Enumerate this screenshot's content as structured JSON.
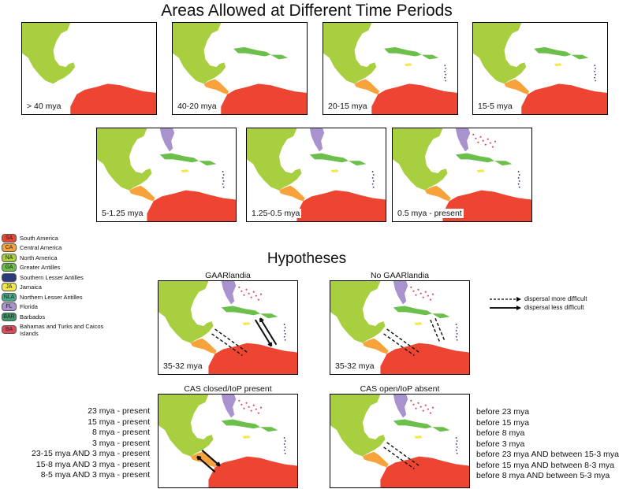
{
  "title": "Areas Allowed at Different Time Periods",
  "hypotheses_title": "Hypotheses",
  "colors": {
    "south_america": "#ee4532",
    "central_america": "#f7a23b",
    "north_america": "#a7cf3f",
    "greater_antilles": "#6cbf4b",
    "southern_lesser_antilles": "#2c3a7a",
    "jamaica": "#f3e84a",
    "northern_lesser_antilles": "#47a88a",
    "florida": "#a993cf",
    "barbados": "#3a9b6a",
    "bahamas": "#e04a5a"
  },
  "time_panels": [
    {
      "label": "> 40 mya"
    },
    {
      "label": "40-20 mya"
    },
    {
      "label": "20-15 mya"
    },
    {
      "label": "15-5 mya"
    },
    {
      "label": "5-1.25 mya"
    },
    {
      "label": "1.25-0.5 mya"
    },
    {
      "label": "0.5 mya - present"
    }
  ],
  "legend": [
    {
      "code": "SA",
      "name": "South America",
      "color": "#ee4532"
    },
    {
      "code": "CA",
      "name": "Central America",
      "color": "#f7a23b"
    },
    {
      "code": "NA",
      "name": "North America",
      "color": "#a7cf3f"
    },
    {
      "code": "GA",
      "name": "Greater Antilles",
      "color": "#6cbf4b"
    },
    {
      "code": "",
      "name": "Southern Lesser Antilles",
      "color": "#2c3a7a"
    },
    {
      "code": "JA",
      "name": "Jamaica",
      "color": "#f3e84a"
    },
    {
      "code": "NLA",
      "name": "Northern Lesser Antilles",
      "color": "#47a88a"
    },
    {
      "code": "FL",
      "name": "Florida",
      "color": "#a993cf"
    },
    {
      "code": "BAR",
      "name": "Barbados",
      "color": "#3a9b6a"
    },
    {
      "code": "BA",
      "name": "Bahamas and Turks and Caicos Islands",
      "color": "#e04a5a"
    }
  ],
  "hyp": {
    "gaarlandia": {
      "title": "GAARlandia",
      "label": "35-32 mya"
    },
    "no_gaarlandia": {
      "title": "No GAARlandia",
      "label": "35-32 mya"
    },
    "cas_closed": {
      "title": "CAS closed/IoP present"
    },
    "cas_open": {
      "title": "CAS open/IoP absent"
    }
  },
  "arrow_legend": {
    "dashed": "dispersal more difficult",
    "solid": "dispersal less difficult"
  },
  "cas_closed_lines": [
    "23 mya - present",
    "15 mya - present",
    "8 mya - present",
    "3 mya - present",
    "23-15 mya AND 3 mya - present",
    "15-8 mya AND 3 mya - present",
    "8-5 mya AND 3 mya - present"
  ],
  "cas_open_lines": [
    "before 23 mya",
    "before 15 mya",
    "before 8 mya",
    "before 3 mya",
    "before 23 mya AND between 15-3 mya",
    "before 15 mya AND between 8-3 mya",
    "before 8 mya AND between 5-3 mya"
  ]
}
